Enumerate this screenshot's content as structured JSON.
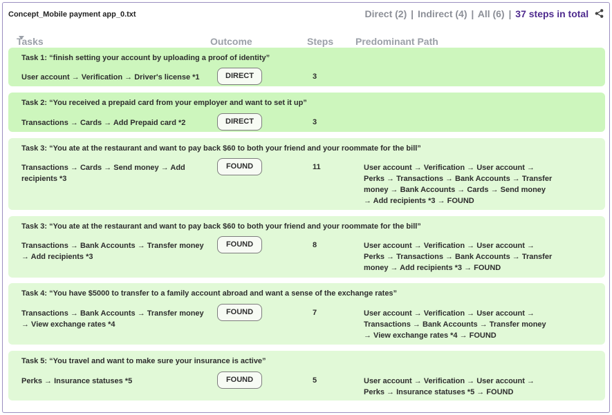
{
  "file": {
    "name": "Concept_Mobile payment app_0.txt"
  },
  "filters": {
    "direct": "Direct (2)",
    "indirect": "Indirect (4)",
    "all": "All (6)",
    "sep1": "|",
    "sep2": "|",
    "sep3": "|",
    "total": "37 steps in total",
    "share_icon": "share-icon"
  },
  "columns": {
    "tasks": "Tasks",
    "outcome": "Outcome",
    "steps": "Steps",
    "path": "Predominant Path"
  },
  "colors": {
    "direct_bg": "#cdf6bd",
    "found_bg": "#e1f9d7",
    "accent": "#4e2a8e"
  },
  "tasks": [
    {
      "title": "Task 1: “finish setting your account by uploading a proof of identity”",
      "path": "User account → Verification → Driver's license *1",
      "outcome": "DIRECT",
      "steps": "3",
      "predominant": ""
    },
    {
      "title": "Task 2: “You received a prepaid card from your employer and want to set it up”",
      "path": "Transactions → Cards → Add Prepaid card *2",
      "outcome": "DIRECT",
      "steps": "3",
      "predominant": ""
    },
    {
      "title": "Task 3: “You ate at the restaurant and want to pay back $60 to both your friend and your roommate for the bill”",
      "path": "Transactions → Cards → Send money → Add recipients *3",
      "outcome": "FOUND",
      "steps": "11",
      "predominant": "User account → Verification → User account → Perks → Transactions → Bank Accounts → Transfer money → Bank Accounts → Cards → Send money → Add recipients *3 → FOUND"
    },
    {
      "title": "Task 3: “You ate at the restaurant and want to pay back $60 to both your friend and your roommate for the bill”",
      "path": "Transactions → Bank Accounts → Transfer money → Add recipients *3",
      "outcome": "FOUND",
      "steps": "8",
      "predominant": "User account → Verification → User account → Perks → Transactions → Bank Accounts → Transfer money → Add recipients *3 → FOUND"
    },
    {
      "title": "Task 4: “You have $5000 to transfer to a family account abroad and want a sense of the exchange rates”",
      "path": "Transactions → Bank Accounts → Transfer money → View exchange rates *4",
      "outcome": "FOUND",
      "steps": "7",
      "predominant": "User account → Verification → User account → Transactions → Bank Accounts → Transfer money → View exchange rates *4 → FOUND"
    },
    {
      "title": "Task 5: “You travel and want to make sure your insurance is active”",
      "path": "Perks → Insurance statuses *5",
      "outcome": "FOUND",
      "steps": "5",
      "predominant": "User account → Verification → User account → Perks → Insurance statuses *5 → FOUND"
    }
  ]
}
